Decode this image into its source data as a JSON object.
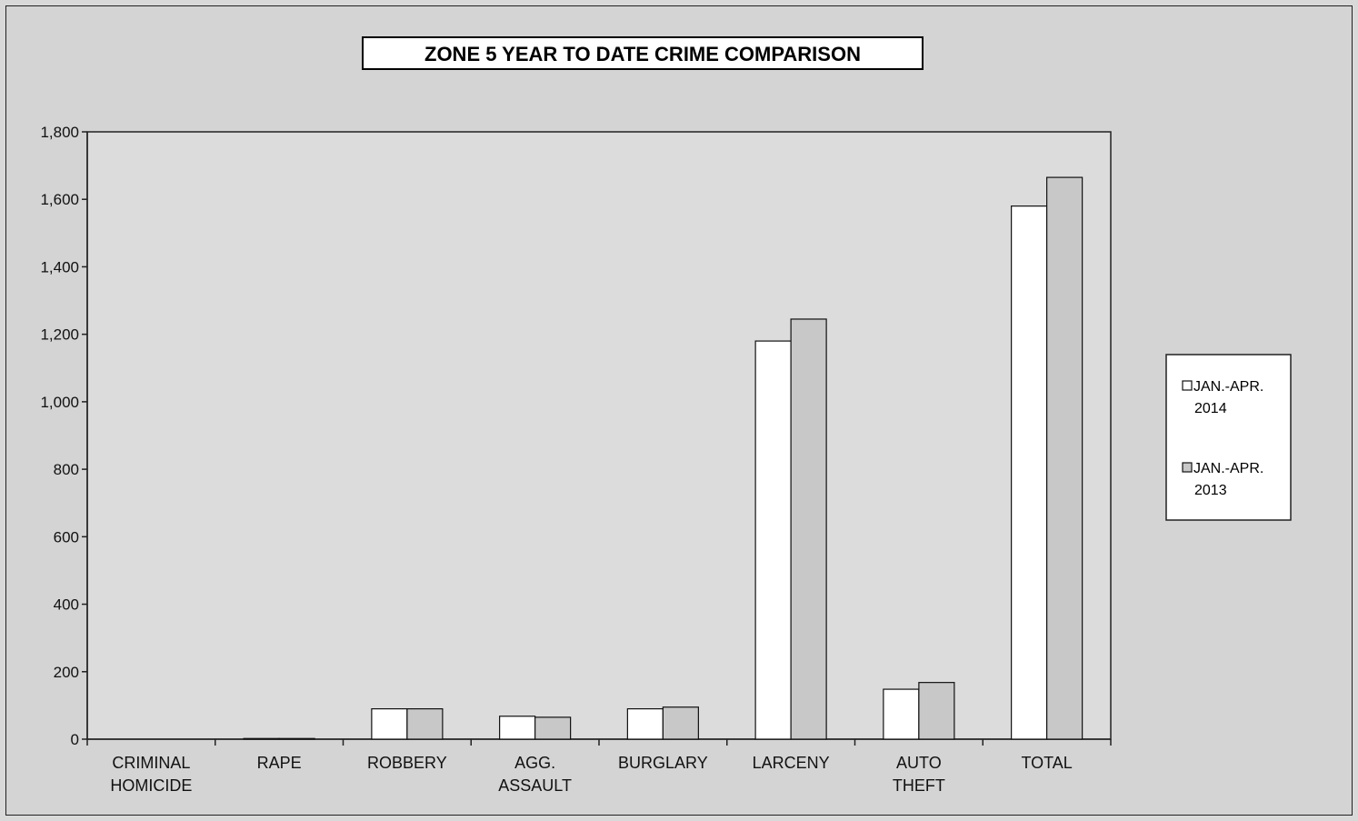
{
  "chart_data": {
    "type": "bar",
    "title": "ZONE 5  YEAR TO DATE CRIME COMPARISON",
    "xlabel": "",
    "ylabel": "",
    "ylim": [
      0,
      1800
    ],
    "yticks": [
      "0",
      "200",
      "400",
      "600",
      "800",
      "1,000",
      "1,200",
      "1,400",
      "1,600",
      "1,800"
    ],
    "categories": [
      [
        "CRIMINAL",
        "HOMICIDE"
      ],
      [
        "RAPE"
      ],
      [
        "ROBBERY"
      ],
      [
        "AGG.",
        "ASSAULT"
      ],
      [
        "BURGLARY"
      ],
      [
        "LARCENY"
      ],
      [
        "AUTO",
        "THEFT"
      ],
      [
        "TOTAL"
      ]
    ],
    "series": [
      {
        "name": [
          "JAN.-APR.",
          "2014"
        ],
        "color": "#ffffff",
        "values": [
          0,
          2,
          90,
          68,
          90,
          1180,
          148,
          1580
        ]
      },
      {
        "name": [
          "JAN.-APR.",
          "2013"
        ],
        "color": "#c8c8c8",
        "values": [
          0,
          2,
          90,
          65,
          95,
          1245,
          168,
          1665
        ]
      }
    ],
    "grid": false,
    "legend": "right"
  }
}
